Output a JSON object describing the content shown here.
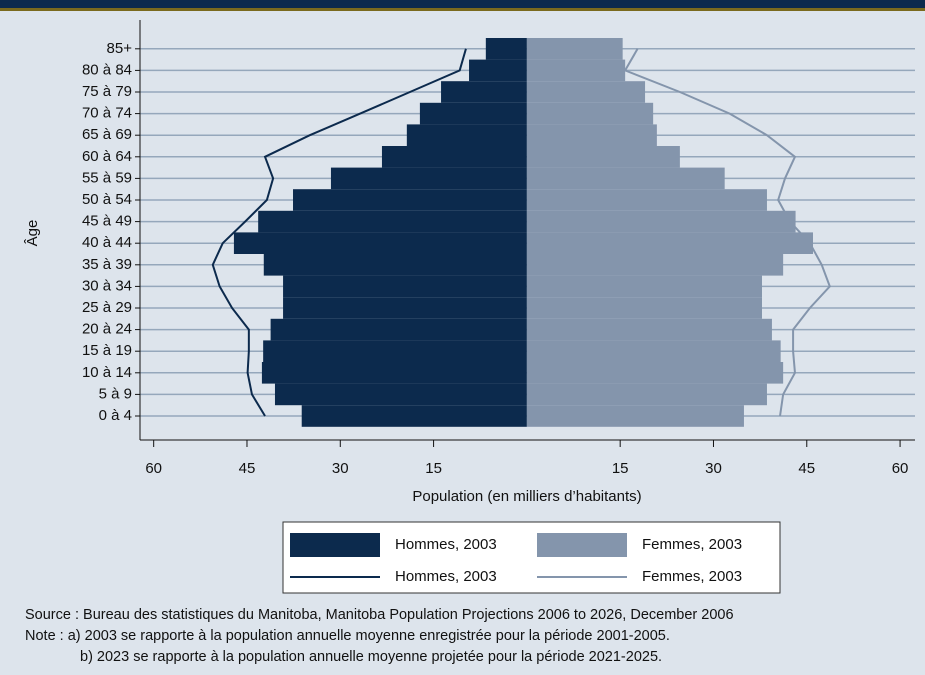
{
  "chart_data": {
    "type": "pyramid",
    "x_label": "Population (en milliers d’habitants)",
    "y_label": "Âge",
    "categories": [
      "0 à 4",
      "5 à 9",
      "10 à 14",
      "15 à 19",
      "20 à 24",
      "25 à 29",
      "30 à 34",
      "35 à 39",
      "40 à 44",
      "45 à 49",
      "50 à 54",
      "55 à 59",
      "60 à 64",
      "65 à 69",
      "70 à 74",
      "75 à 79",
      "80 à 84",
      "85+"
    ],
    "series": [
      {
        "name": "Hommes, 2003",
        "kind": "bar",
        "side": "left",
        "color": "#0c2a4d",
        "values": [
          36.2,
          40.5,
          42.6,
          42.4,
          41.2,
          39.2,
          39.2,
          42.3,
          47.1,
          43.2,
          37.6,
          31.5,
          23.3,
          19.3,
          17.2,
          13.8,
          9.3,
          6.6
        ]
      },
      {
        "name": "Femmes, 2003",
        "kind": "bar",
        "side": "right",
        "color": "#8495ac",
        "values": [
          34.9,
          38.6,
          41.2,
          40.8,
          39.4,
          37.8,
          37.8,
          41.2,
          46.0,
          43.2,
          38.6,
          31.8,
          24.6,
          20.9,
          20.3,
          19.0,
          15.8,
          15.4
        ]
      },
      {
        "name": "Hommes, 2003",
        "kind": "line",
        "side": "left",
        "color": "#0c2a4d",
        "values": [
          42.1,
          44.2,
          44.9,
          44.7,
          44.7,
          47.4,
          49.4,
          50.5,
          48.9,
          45.3,
          41.8,
          40.8,
          42.1,
          34.9,
          26.8,
          18.8,
          10.8,
          9.8
        ]
      },
      {
        "name": "Femmes, 2003",
        "kind": "line",
        "side": "right",
        "color": "#8495ac",
        "values": [
          40.7,
          41.2,
          43.1,
          42.8,
          42.8,
          45.5,
          48.7,
          47.4,
          45.5,
          42.3,
          40.4,
          41.5,
          43.1,
          38.6,
          32.6,
          24.6,
          15.8,
          17.8
        ]
      }
    ],
    "xlim": [
      -62.2,
      62.4
    ],
    "xticks": [
      {
        "value": -60,
        "label": "60"
      },
      {
        "value": -45,
        "label": "45"
      },
      {
        "value": -30,
        "label": "30"
      },
      {
        "value": -15,
        "label": "15"
      },
      15,
      30,
      45,
      60
    ],
    "grid": true,
    "notes": [
      "Source : Bureau des statistiques du Manitoba, Manitoba Population Projections 2006 to 2026, December 2006",
      "Note : a) 2003 se rapporte à la population annuelle moyenne enregistrée pour la période 2001-2005.",
      "b) 2023 se rapporte à la population annuelle moyenne projetée pour la période 2021-2025."
    ]
  }
}
